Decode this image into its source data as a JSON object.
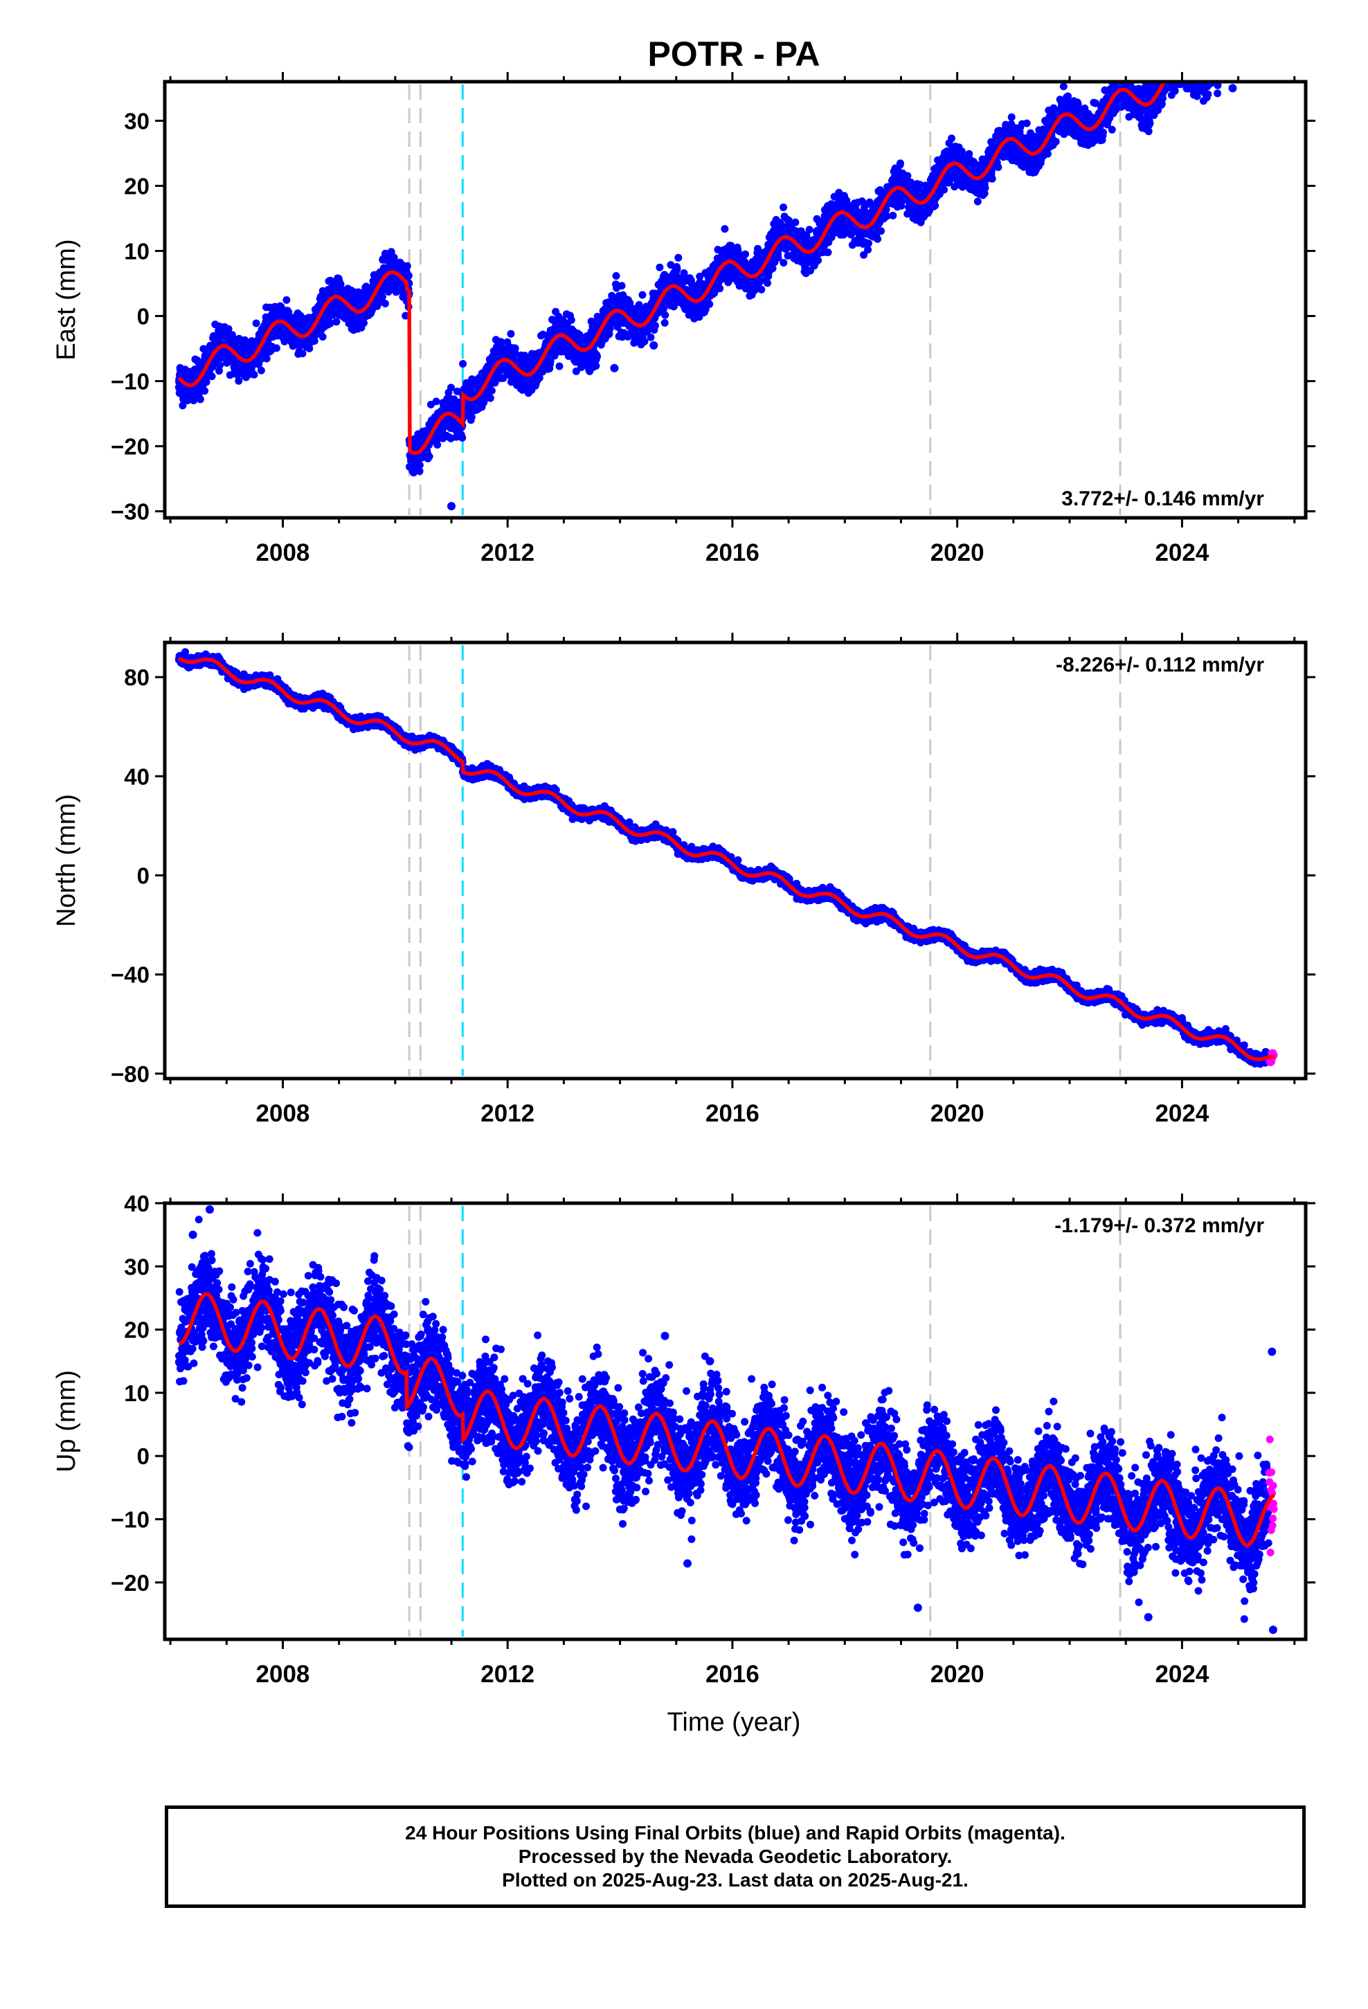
{
  "title": "POTR - PA",
  "xlabel": "Time (year)",
  "colors": {
    "final_orbits": "#0000ff",
    "rapid_orbits": "#ff00ff",
    "model": "#ff0000",
    "equipment_change": "#c8c8c8",
    "earthquake": "#00e0ff"
  },
  "footer": {
    "line1": "24 Hour Positions Using Final Orbits (blue) and Rapid Orbits (magenta).",
    "line2": "Processed by the Nevada Geodetic Laboratory.",
    "line3": "Plotted on 2025-Aug-23. Last data on 2025-Aug-21."
  },
  "chart_data": [
    {
      "type": "scatter",
      "component": "East",
      "ylabel": "East (mm)",
      "ylim": [
        -31,
        36
      ],
      "yticks": [
        -30,
        -20,
        -10,
        0,
        10,
        20,
        30
      ],
      "xlim": [
        2005.9,
        2026.2
      ],
      "xticks": [
        2008,
        2012,
        2016,
        2020,
        2024
      ],
      "velocity_label": "3.772+/- 0.146 mm/yr",
      "velocity_label_position": "bottom-right",
      "gray_dashed_lines": [
        2010.25,
        2010.45,
        2019.52,
        2022.9
      ],
      "cyan_dashed_lines": [
        2011.2
      ],
      "final_orbit_range": [
        2006.15,
        2025.55
      ],
      "rapid_orbit_range": [
        2025.55,
        2025.64
      ],
      "model": {
        "segments": [
          {
            "from": 2006.15,
            "to": 2010.2,
            "offset": -9.5
          },
          {
            "from": 2010.2,
            "to": 2010.25,
            "offset": -10.5
          },
          {
            "from": 2010.25,
            "to": 2011.2,
            "offset": -35.0
          },
          {
            "from": 2011.2,
            "to": 2025.65,
            "offset": -30.5
          }
        ],
        "velocity": 3.772,
        "t0": 2006.15,
        "seasonal_amplitude": 2.0,
        "seasonal_phase": 0.65
      },
      "scatter_sigma": 1.4,
      "outliers": [
        {
          "x": 2011.0,
          "y": -29.2
        },
        {
          "x": 2024.9,
          "y": 35.0
        },
        {
          "x": 2014.6,
          "y": -4.5
        },
        {
          "x": 2013.9,
          "y": -8.0
        }
      ]
    },
    {
      "type": "scatter",
      "component": "North",
      "ylabel": "North (mm)",
      "ylim": [
        -82,
        94
      ],
      "yticks": [
        -80,
        -40,
        0,
        40,
        80
      ],
      "xlim": [
        2005.9,
        2026.2
      ],
      "xticks": [
        2008,
        2012,
        2016,
        2020,
        2024
      ],
      "velocity_label": "-8.226+/- 0.112 mm/yr",
      "velocity_label_position": "top-right",
      "gray_dashed_lines": [
        2010.25,
        2010.45,
        2019.52,
        2022.9
      ],
      "cyan_dashed_lines": [
        2011.2
      ],
      "final_orbit_range": [
        2006.15,
        2025.55
      ],
      "rapid_orbit_range": [
        2025.55,
        2025.64
      ],
      "model": {
        "segments": [
          {
            "from": 2006.15,
            "to": 2011.2,
            "offset": 89.5
          },
          {
            "from": 2011.2,
            "to": 2025.65,
            "offset": 85.5
          }
        ],
        "velocity": -8.226,
        "t0": 2006.15,
        "seasonal_amplitude": 2.2,
        "seasonal_phase": 0.5
      },
      "scatter_sigma": 1.0,
      "outliers": []
    },
    {
      "type": "scatter",
      "component": "Up",
      "ylabel": "Up (mm)",
      "ylim": [
        -29,
        40
      ],
      "yticks": [
        -20,
        -10,
        0,
        10,
        20,
        30,
        40
      ],
      "xlim": [
        2005.9,
        2026.2
      ],
      "xticks": [
        2008,
        2012,
        2016,
        2020,
        2024
      ],
      "velocity_label": "-1.179+/- 0.372 mm/yr",
      "velocity_label_position": "top-right",
      "gray_dashed_lines": [
        2010.25,
        2010.45,
        2019.52,
        2022.9
      ],
      "cyan_dashed_lines": [
        2011.2
      ],
      "final_orbit_range": [
        2006.15,
        2025.55
      ],
      "rapid_orbit_range": [
        2025.55,
        2025.64
      ],
      "model": {
        "segments": [
          {
            "from": 2006.15,
            "to": 2010.2,
            "offset": 22.0
          },
          {
            "from": 2010.2,
            "to": 2011.2,
            "offset": 16.5
          },
          {
            "from": 2011.2,
            "to": 2025.65,
            "offset": 12.5
          }
        ],
        "velocity": -1.179,
        "t0": 2006.15,
        "seasonal_amplitude": 4.2,
        "seasonal_phase": 0.4
      },
      "scatter_sigma": 3.5,
      "outliers": [
        {
          "x": 2006.7,
          "y": 39.0
        },
        {
          "x": 2006.4,
          "y": 35.0
        },
        {
          "x": 2014.8,
          "y": 19.0
        },
        {
          "x": 2015.6,
          "y": 15.0
        },
        {
          "x": 2019.3,
          "y": -24.0
        },
        {
          "x": 2025.6,
          "y": 16.5
        },
        {
          "x": 2025.62,
          "y": -27.5
        },
        {
          "x": 2023.4,
          "y": -25.5
        },
        {
          "x": 2015.2,
          "y": -17.0
        }
      ]
    }
  ]
}
